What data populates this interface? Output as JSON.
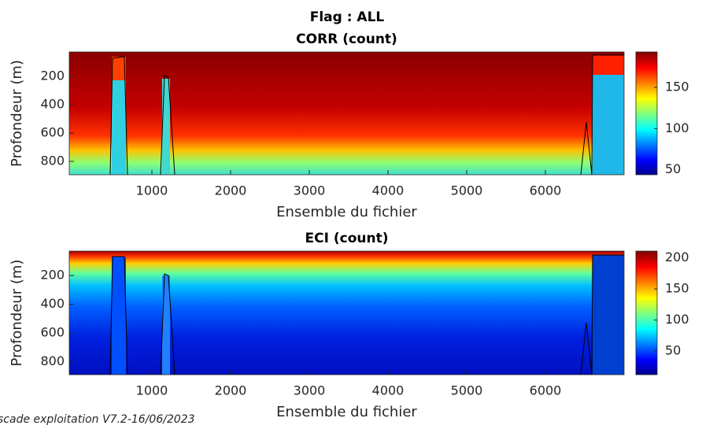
{
  "suptitle": "Flag : ALL",
  "footer": "scade exploitation V7.2-16/06/2023",
  "chart_data": [
    {
      "type": "heatmap",
      "title": "CORR (count)",
      "xlabel": "Ensemble du fichier",
      "ylabel": "Profondeur (m)",
      "xlim": [
        -50,
        7000
      ],
      "xticks": [
        1000,
        2000,
        3000,
        4000,
        5000,
        6000
      ],
      "ylim": [
        28,
        894
      ],
      "yticks": [
        200,
        400,
        600,
        800
      ],
      "y_reversed": true,
      "clim": [
        44,
        193
      ],
      "cticks": [
        50,
        100,
        150
      ],
      "colormap": "jet"
    },
    {
      "type": "heatmap",
      "title": "ECI (count)",
      "xlabel": "Ensemble du fichier",
      "ylabel": "Profondeur (m)",
      "xlim": [
        -50,
        7000
      ],
      "xticks": [
        1000,
        2000,
        3000,
        4000,
        5000,
        6000
      ],
      "ylim": [
        30,
        890
      ],
      "yticks": [
        200,
        400,
        600,
        800
      ],
      "y_reversed": true,
      "clim": [
        12,
        211
      ],
      "cticks": [
        50,
        100,
        150,
        200
      ],
      "colormap": "jet"
    }
  ]
}
